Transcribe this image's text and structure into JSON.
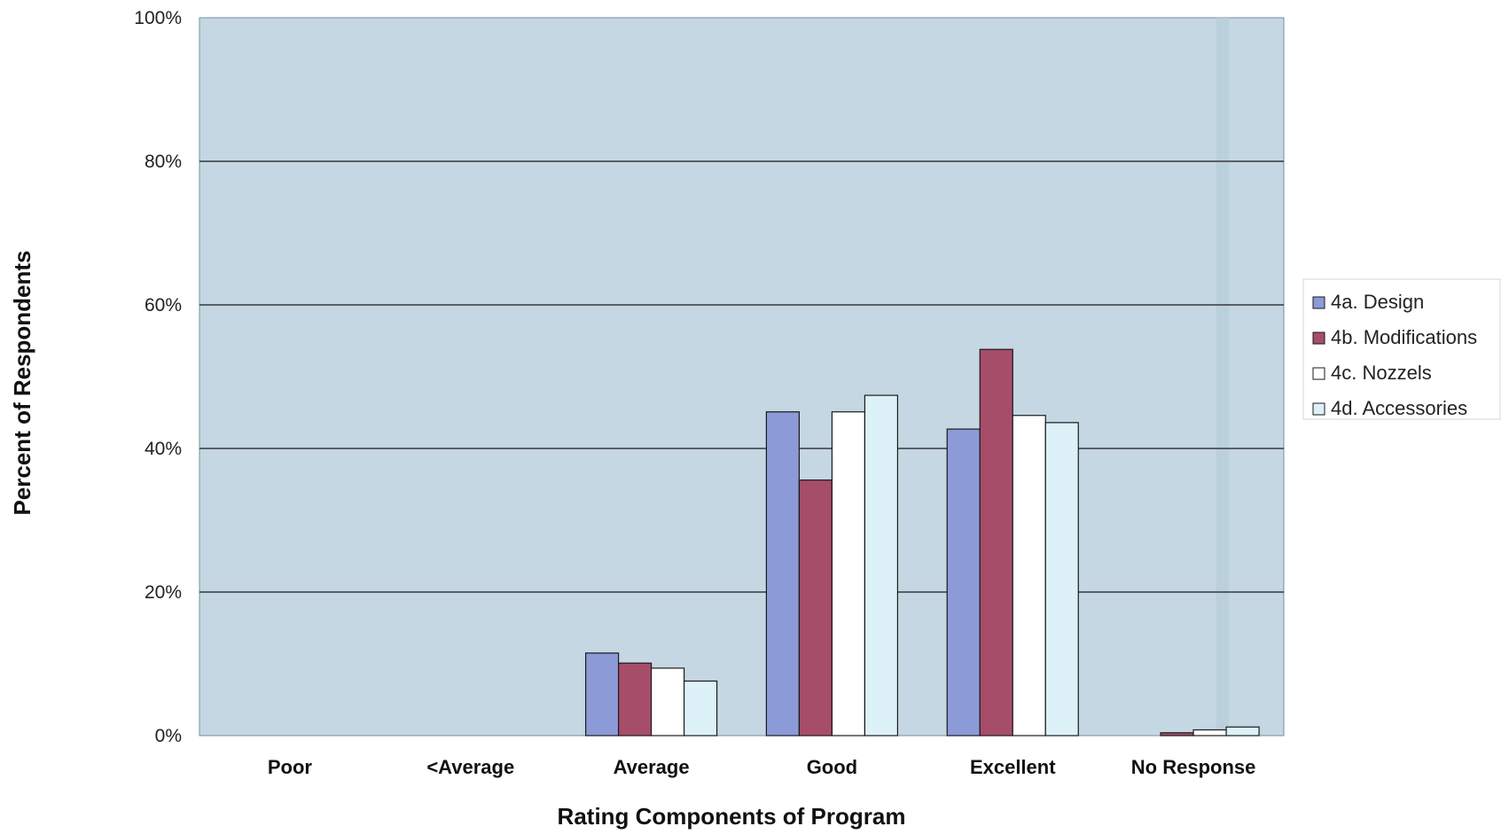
{
  "chart_data": {
    "type": "bar",
    "title": "",
    "xlabel": "Rating Components of Program",
    "ylabel": "Percent of Respondents",
    "categories": [
      "Poor",
      "<Average",
      "Average",
      "Good",
      "Excellent",
      "No Response"
    ],
    "series": [
      {
        "name": "4a. Design",
        "color": "#8c9ad8",
        "values": [
          0,
          0,
          11.5,
          45.1,
          42.7,
          0
        ]
      },
      {
        "name": "4b. Modifications",
        "color": "#a64d6a",
        "values": [
          0,
          0,
          10.1,
          35.6,
          53.8,
          0.4
        ]
      },
      {
        "name": "4c. Nozzels",
        "color": "#ffffff",
        "values": [
          0,
          0,
          9.4,
          45.1,
          44.6,
          0.8
        ]
      },
      {
        "name": "4d. Accessories",
        "color": "#dcf1f8",
        "values": [
          0,
          0,
          7.6,
          47.4,
          43.6,
          1.2
        ]
      }
    ],
    "ylim": [
      0,
      100
    ],
    "yticks": [
      0,
      20,
      40,
      60,
      80,
      100
    ],
    "ytick_labels": [
      "0%",
      "20%",
      "40%",
      "60%",
      "80%",
      "100%"
    ],
    "grid": true,
    "legend_position": "right",
    "plot_background": "#c4d7e3"
  }
}
